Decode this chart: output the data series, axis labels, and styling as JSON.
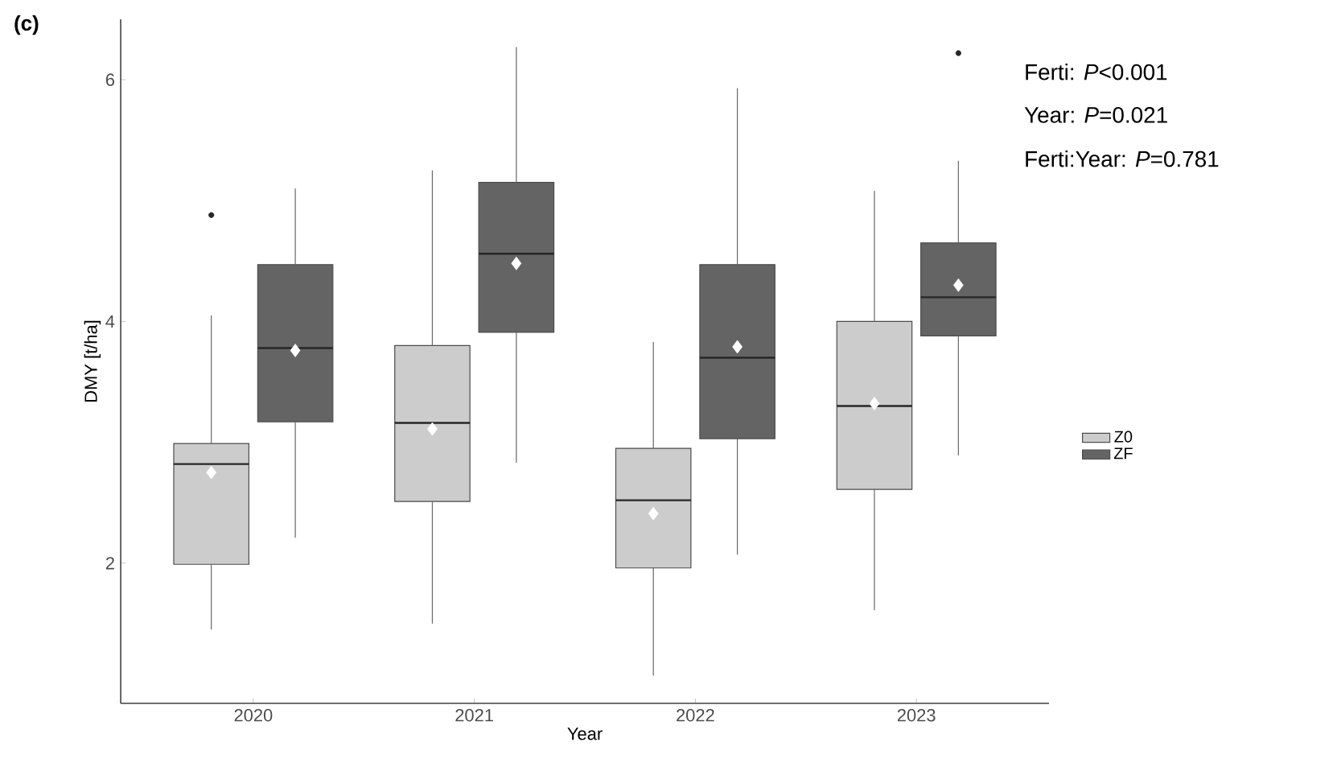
{
  "chart_data": {
    "type": "box",
    "title": "(c)",
    "xlabel": "Year",
    "ylabel": "DMY [t/ha]",
    "categories": [
      "2020",
      "2021",
      "2022",
      "2023"
    ],
    "ylim": [
      0.84,
      6.5
    ],
    "yticks": [
      2,
      4,
      6
    ],
    "legend": "right",
    "annotations": [
      "Ferti: *P*<0.001",
      "Year: *P*=0.021",
      "Ferti:Year: *P*=0.781"
    ],
    "series": [
      {
        "name": "Z0",
        "color": "#cccccc",
        "boxes": [
          {
            "low": 1.45,
            "q1": 1.99,
            "median": 2.82,
            "q3": 2.99,
            "high": 4.05,
            "mean": 2.75,
            "outliers": [
              4.88
            ]
          },
          {
            "low": 1.5,
            "q1": 2.51,
            "median": 3.16,
            "q3": 3.8,
            "high": 5.25,
            "mean": 3.11
          },
          {
            "low": 1.07,
            "q1": 1.96,
            "median": 2.52,
            "q3": 2.95,
            "high": 3.83,
            "mean": 2.41
          },
          {
            "low": 1.61,
            "q1": 2.61,
            "median": 3.3,
            "q3": 4.0,
            "high": 5.08,
            "mean": 3.32
          }
        ]
      },
      {
        "name": "ZF",
        "color": "#646464",
        "boxes": [
          {
            "low": 2.21,
            "q1": 3.17,
            "median": 3.78,
            "q3": 4.47,
            "high": 5.1,
            "mean": 3.76
          },
          {
            "low": 2.83,
            "q1": 3.91,
            "median": 4.56,
            "q3": 5.15,
            "high": 6.27,
            "mean": 4.48
          },
          {
            "low": 2.07,
            "q1": 3.03,
            "median": 3.7,
            "q3": 4.47,
            "high": 5.93,
            "mean": 3.79
          },
          {
            "low": 2.89,
            "q1": 3.88,
            "median": 4.2,
            "q3": 4.65,
            "high": 5.33,
            "mean": 4.3,
            "outliers": [
              6.22
            ]
          }
        ]
      }
    ]
  }
}
